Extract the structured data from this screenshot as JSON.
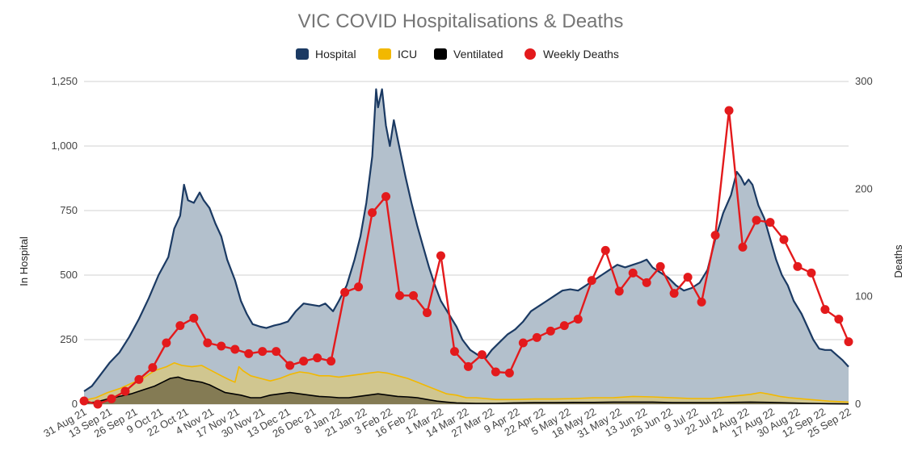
{
  "chart_data": {
    "type": "area+line",
    "title": "VIC COVID Hospitalisations & Deaths",
    "ylabel_left": "In Hospital",
    "ylabel_right": "Deaths",
    "ylim_left": [
      0,
      1250
    ],
    "ylim_right": [
      0,
      300
    ],
    "y_ticks_left": [
      "0",
      "250",
      "500",
      "750",
      "1,000",
      "1,250"
    ],
    "y_tick_values_left": [
      0,
      250,
      500,
      750,
      1000,
      1250
    ],
    "y_ticks_right": [
      "0",
      "100",
      "200",
      "300"
    ],
    "y_tick_values_right": [
      0,
      100,
      200,
      300
    ],
    "x_tick_labels": [
      "31 Aug 21",
      "13 Sep 21",
      "26 Sep 21",
      "9 Oct 21",
      "22 Oct 21",
      "4 Nov 21",
      "17 Nov 21",
      "30 Nov 21",
      "13 Dec 21",
      "26 Dec 21",
      "8 Jan 22",
      "21 Jan 22",
      "3 Feb 22",
      "16 Feb 22",
      "1 Mar 22",
      "14 Mar 22",
      "27 Mar 22",
      "9 Apr 22",
      "22 Apr 22",
      "5 May 22",
      "18 May 22",
      "31 May 22",
      "13 Jun 22",
      "26 Jun 22",
      "9 Jul 22",
      "22 Jul 22",
      "4 Aug 22",
      "17 Aug 22",
      "30 Aug 22",
      "12 Sep 22",
      "25 Sep 22"
    ],
    "x_days_total": 390,
    "legend": [
      {
        "name": "Hospital",
        "color": "#1b3a63"
      },
      {
        "name": "ICU",
        "color": "#f2b800"
      },
      {
        "name": "Ventilated",
        "color": "#000000"
      },
      {
        "name": "Weekly Deaths",
        "color": "#e31a1c"
      }
    ],
    "legend_position": "top",
    "grid": true,
    "series": [
      {
        "name": "Hospital",
        "axis": "left",
        "points": [
          [
            0,
            50
          ],
          [
            4,
            70
          ],
          [
            8,
            110
          ],
          [
            13,
            160
          ],
          [
            18,
            200
          ],
          [
            23,
            260
          ],
          [
            28,
            330
          ],
          [
            33,
            410
          ],
          [
            38,
            500
          ],
          [
            43,
            570
          ],
          [
            46,
            680
          ],
          [
            49,
            730
          ],
          [
            51,
            850
          ],
          [
            53,
            790
          ],
          [
            56,
            780
          ],
          [
            59,
            820
          ],
          [
            61,
            790
          ],
          [
            64,
            760
          ],
          [
            67,
            700
          ],
          [
            70,
            650
          ],
          [
            73,
            560
          ],
          [
            77,
            480
          ],
          [
            80,
            400
          ],
          [
            83,
            350
          ],
          [
            86,
            310
          ],
          [
            90,
            300
          ],
          [
            93,
            295
          ],
          [
            97,
            305
          ],
          [
            100,
            310
          ],
          [
            104,
            320
          ],
          [
            108,
            360
          ],
          [
            112,
            390
          ],
          [
            116,
            385
          ],
          [
            120,
            380
          ],
          [
            123,
            390
          ],
          [
            127,
            360
          ],
          [
            130,
            400
          ],
          [
            134,
            460
          ],
          [
            138,
            560
          ],
          [
            141,
            650
          ],
          [
            144,
            780
          ],
          [
            147,
            960
          ],
          [
            149,
            1220
          ],
          [
            150,
            1150
          ],
          [
            152,
            1220
          ],
          [
            154,
            1080
          ],
          [
            156,
            1000
          ],
          [
            158,
            1100
          ],
          [
            161,
            990
          ],
          [
            164,
            880
          ],
          [
            167,
            780
          ],
          [
            170,
            690
          ],
          [
            173,
            610
          ],
          [
            176,
            530
          ],
          [
            179,
            460
          ],
          [
            182,
            400
          ],
          [
            186,
            350
          ],
          [
            190,
            300
          ],
          [
            193,
            250
          ],
          [
            197,
            210
          ],
          [
            201,
            190
          ],
          [
            205,
            180
          ],
          [
            208,
            210
          ],
          [
            212,
            240
          ],
          [
            216,
            270
          ],
          [
            220,
            290
          ],
          [
            224,
            320
          ],
          [
            228,
            360
          ],
          [
            232,
            380
          ],
          [
            236,
            400
          ],
          [
            240,
            420
          ],
          [
            244,
            440
          ],
          [
            248,
            445
          ],
          [
            252,
            440
          ],
          [
            256,
            460
          ],
          [
            260,
            480
          ],
          [
            264,
            500
          ],
          [
            268,
            520
          ],
          [
            272,
            540
          ],
          [
            276,
            530
          ],
          [
            280,
            540
          ],
          [
            284,
            550
          ],
          [
            287,
            560
          ],
          [
            290,
            530
          ],
          [
            294,
            510
          ],
          [
            298,
            490
          ],
          [
            302,
            460
          ],
          [
            306,
            440
          ],
          [
            310,
            450
          ],
          [
            314,
            470
          ],
          [
            318,
            520
          ],
          [
            322,
            640
          ],
          [
            326,
            740
          ],
          [
            330,
            810
          ],
          [
            333,
            900
          ],
          [
            335,
            880
          ],
          [
            337,
            850
          ],
          [
            339,
            870
          ],
          [
            341,
            850
          ],
          [
            344,
            770
          ],
          [
            347,
            720
          ],
          [
            350,
            640
          ],
          [
            353,
            560
          ],
          [
            356,
            500
          ],
          [
            359,
            460
          ],
          [
            362,
            400
          ],
          [
            366,
            350
          ],
          [
            369,
            300
          ],
          [
            372,
            250
          ],
          [
            375,
            215
          ],
          [
            378,
            210
          ],
          [
            381,
            210
          ],
          [
            384,
            190
          ],
          [
            387,
            170
          ],
          [
            390,
            145
          ]
        ]
      },
      {
        "name": "ICU",
        "axis": "left",
        "points": [
          [
            0,
            15
          ],
          [
            6,
            25
          ],
          [
            12,
            45
          ],
          [
            18,
            60
          ],
          [
            24,
            80
          ],
          [
            30,
            100
          ],
          [
            36,
            130
          ],
          [
            42,
            145
          ],
          [
            46,
            160
          ],
          [
            50,
            150
          ],
          [
            55,
            145
          ],
          [
            60,
            150
          ],
          [
            65,
            130
          ],
          [
            70,
            110
          ],
          [
            74,
            95
          ],
          [
            77,
            85
          ],
          [
            79,
            145
          ],
          [
            81,
            130
          ],
          [
            85,
            110
          ],
          [
            90,
            100
          ],
          [
            95,
            90
          ],
          [
            100,
            100
          ],
          [
            105,
            115
          ],
          [
            110,
            125
          ],
          [
            115,
            120
          ],
          [
            120,
            110
          ],
          [
            125,
            110
          ],
          [
            130,
            105
          ],
          [
            135,
            110
          ],
          [
            140,
            115
          ],
          [
            145,
            120
          ],
          [
            150,
            125
          ],
          [
            155,
            120
          ],
          [
            160,
            110
          ],
          [
            165,
            100
          ],
          [
            170,
            85
          ],
          [
            175,
            70
          ],
          [
            180,
            55
          ],
          [
            185,
            40
          ],
          [
            190,
            35
          ],
          [
            195,
            25
          ],
          [
            200,
            25
          ],
          [
            210,
            18
          ],
          [
            220,
            18
          ],
          [
            230,
            20
          ],
          [
            240,
            20
          ],
          [
            250,
            22
          ],
          [
            260,
            25
          ],
          [
            270,
            25
          ],
          [
            280,
            30
          ],
          [
            290,
            28
          ],
          [
            300,
            25
          ],
          [
            310,
            22
          ],
          [
            320,
            22
          ],
          [
            330,
            30
          ],
          [
            340,
            38
          ],
          [
            345,
            45
          ],
          [
            350,
            38
          ],
          [
            355,
            30
          ],
          [
            360,
            25
          ],
          [
            370,
            18
          ],
          [
            380,
            12
          ],
          [
            390,
            8
          ]
        ]
      },
      {
        "name": "Ventilated",
        "axis": "left",
        "points": [
          [
            0,
            5
          ],
          [
            6,
            8
          ],
          [
            12,
            20
          ],
          [
            18,
            30
          ],
          [
            24,
            40
          ],
          [
            30,
            55
          ],
          [
            36,
            70
          ],
          [
            40,
            85
          ],
          [
            44,
            100
          ],
          [
            48,
            105
          ],
          [
            52,
            95
          ],
          [
            56,
            90
          ],
          [
            60,
            85
          ],
          [
            64,
            75
          ],
          [
            68,
            60
          ],
          [
            72,
            45
          ],
          [
            76,
            40
          ],
          [
            80,
            35
          ],
          [
            85,
            25
          ],
          [
            90,
            25
          ],
          [
            95,
            35
          ],
          [
            100,
            40
          ],
          [
            105,
            45
          ],
          [
            110,
            40
          ],
          [
            115,
            35
          ],
          [
            120,
            30
          ],
          [
            125,
            28
          ],
          [
            130,
            25
          ],
          [
            135,
            25
          ],
          [
            140,
            30
          ],
          [
            145,
            35
          ],
          [
            150,
            40
          ],
          [
            155,
            35
          ],
          [
            160,
            30
          ],
          [
            165,
            28
          ],
          [
            170,
            25
          ],
          [
            175,
            18
          ],
          [
            180,
            12
          ],
          [
            185,
            8
          ],
          [
            190,
            5
          ],
          [
            200,
            3
          ],
          [
            210,
            3
          ],
          [
            220,
            5
          ],
          [
            230,
            6
          ],
          [
            240,
            6
          ],
          [
            250,
            7
          ],
          [
            260,
            7
          ],
          [
            270,
            8
          ],
          [
            280,
            8
          ],
          [
            290,
            8
          ],
          [
            300,
            6
          ],
          [
            310,
            6
          ],
          [
            320,
            6
          ],
          [
            330,
            7
          ],
          [
            340,
            8
          ],
          [
            350,
            7
          ],
          [
            360,
            5
          ],
          [
            370,
            3
          ],
          [
            380,
            2
          ],
          [
            390,
            1
          ]
        ]
      },
      {
        "name": "Weekly Deaths",
        "axis": "right",
        "points": [
          [
            0,
            3
          ],
          [
            7,
            0
          ],
          [
            14,
            5
          ],
          [
            21,
            12
          ],
          [
            28,
            23
          ],
          [
            35,
            34
          ],
          [
            42,
            57
          ],
          [
            49,
            73
          ],
          [
            56,
            80
          ],
          [
            63,
            57
          ],
          [
            70,
            54
          ],
          [
            77,
            51
          ],
          [
            84,
            47
          ],
          [
            91,
            49
          ],
          [
            98,
            49
          ],
          [
            105,
            36
          ],
          [
            112,
            40
          ],
          [
            119,
            43
          ],
          [
            126,
            40
          ],
          [
            133,
            104
          ],
          [
            140,
            109
          ],
          [
            147,
            178
          ],
          [
            154,
            193
          ],
          [
            161,
            101
          ],
          [
            168,
            101
          ],
          [
            175,
            85
          ],
          [
            182,
            138
          ],
          [
            189,
            49
          ],
          [
            196,
            35
          ],
          [
            203,
            46
          ],
          [
            210,
            30
          ],
          [
            217,
            29
          ],
          [
            224,
            57
          ],
          [
            231,
            62
          ],
          [
            238,
            68
          ],
          [
            245,
            73
          ],
          [
            252,
            79
          ],
          [
            259,
            115
          ],
          [
            266,
            143
          ],
          [
            273,
            105
          ],
          [
            280,
            122
          ],
          [
            287,
            113
          ],
          [
            294,
            128
          ],
          [
            301,
            103
          ],
          [
            308,
            118
          ],
          [
            315,
            95
          ],
          [
            322,
            157
          ],
          [
            329,
            273
          ],
          [
            336,
            146
          ],
          [
            343,
            171
          ],
          [
            350,
            169
          ],
          [
            357,
            153
          ],
          [
            364,
            128
          ],
          [
            371,
            122
          ],
          [
            378,
            88
          ],
          [
            385,
            79
          ],
          [
            390,
            58
          ]
        ]
      }
    ]
  }
}
